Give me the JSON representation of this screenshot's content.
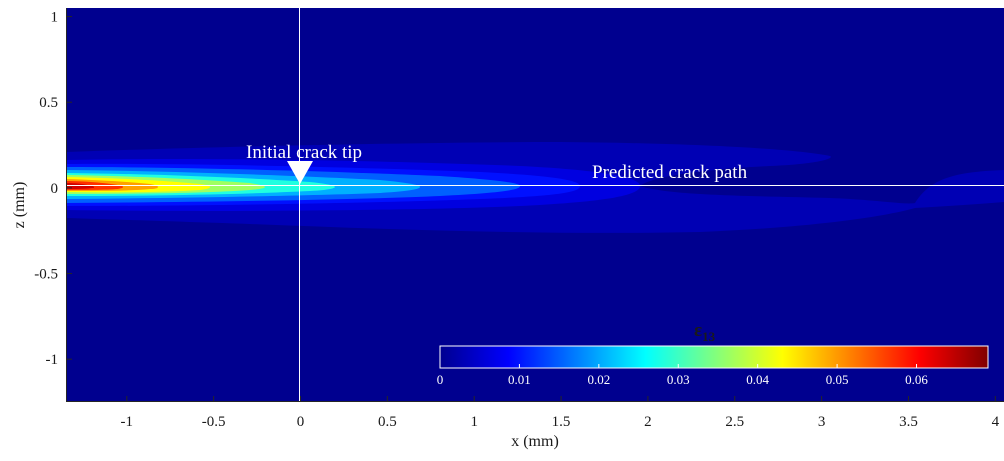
{
  "chart_data": {
    "type": "heatmap",
    "xlabel": "x (mm)",
    "ylabel": "z (mm)",
    "xlim": [
      -1.35,
      4.05
    ],
    "ylim": [
      -1.25,
      1.05
    ],
    "xticks": [
      -1,
      -0.5,
      0,
      0.5,
      1,
      1.5,
      2,
      2.5,
      3,
      3.5,
      4
    ],
    "xtick_labels": [
      "-1",
      "-0.5",
      "0",
      "0.5",
      "1",
      "1.5",
      "2",
      "2.5",
      "3",
      "3.5",
      "4"
    ],
    "yticks": [
      1,
      0.5,
      0,
      -0.5,
      -1
    ],
    "ytick_labels": [
      "1",
      "0.5",
      "0",
      "-0.5",
      "-1"
    ],
    "grid": false,
    "colormap": "jet",
    "background_color": "#00008f",
    "colorbar": {
      "title": "ε",
      "title_subscript": "13",
      "range": [
        0,
        0.069
      ],
      "ticks": [
        0,
        0.01,
        0.02,
        0.03,
        0.04,
        0.05,
        0.06
      ],
      "tick_labels": [
        "0",
        "0.01",
        "0.02",
        "0.03",
        "0.04",
        "0.05",
        "0.06"
      ],
      "orientation": "horizontal",
      "placement": "bottom-right inside axes"
    },
    "field_peak": {
      "x": -1.35,
      "z": 0,
      "value": 0.065
    },
    "annotations": [
      {
        "text": "Initial crack tip",
        "x": 0,
        "z": 0
      },
      {
        "text": "Predicted crack path",
        "z": 0
      }
    ],
    "reference_lines": [
      {
        "orientation": "vertical",
        "x": 0,
        "color": "#ffffff"
      },
      {
        "orientation": "horizontal",
        "z": 0,
        "color": "#ffffff"
      }
    ]
  }
}
